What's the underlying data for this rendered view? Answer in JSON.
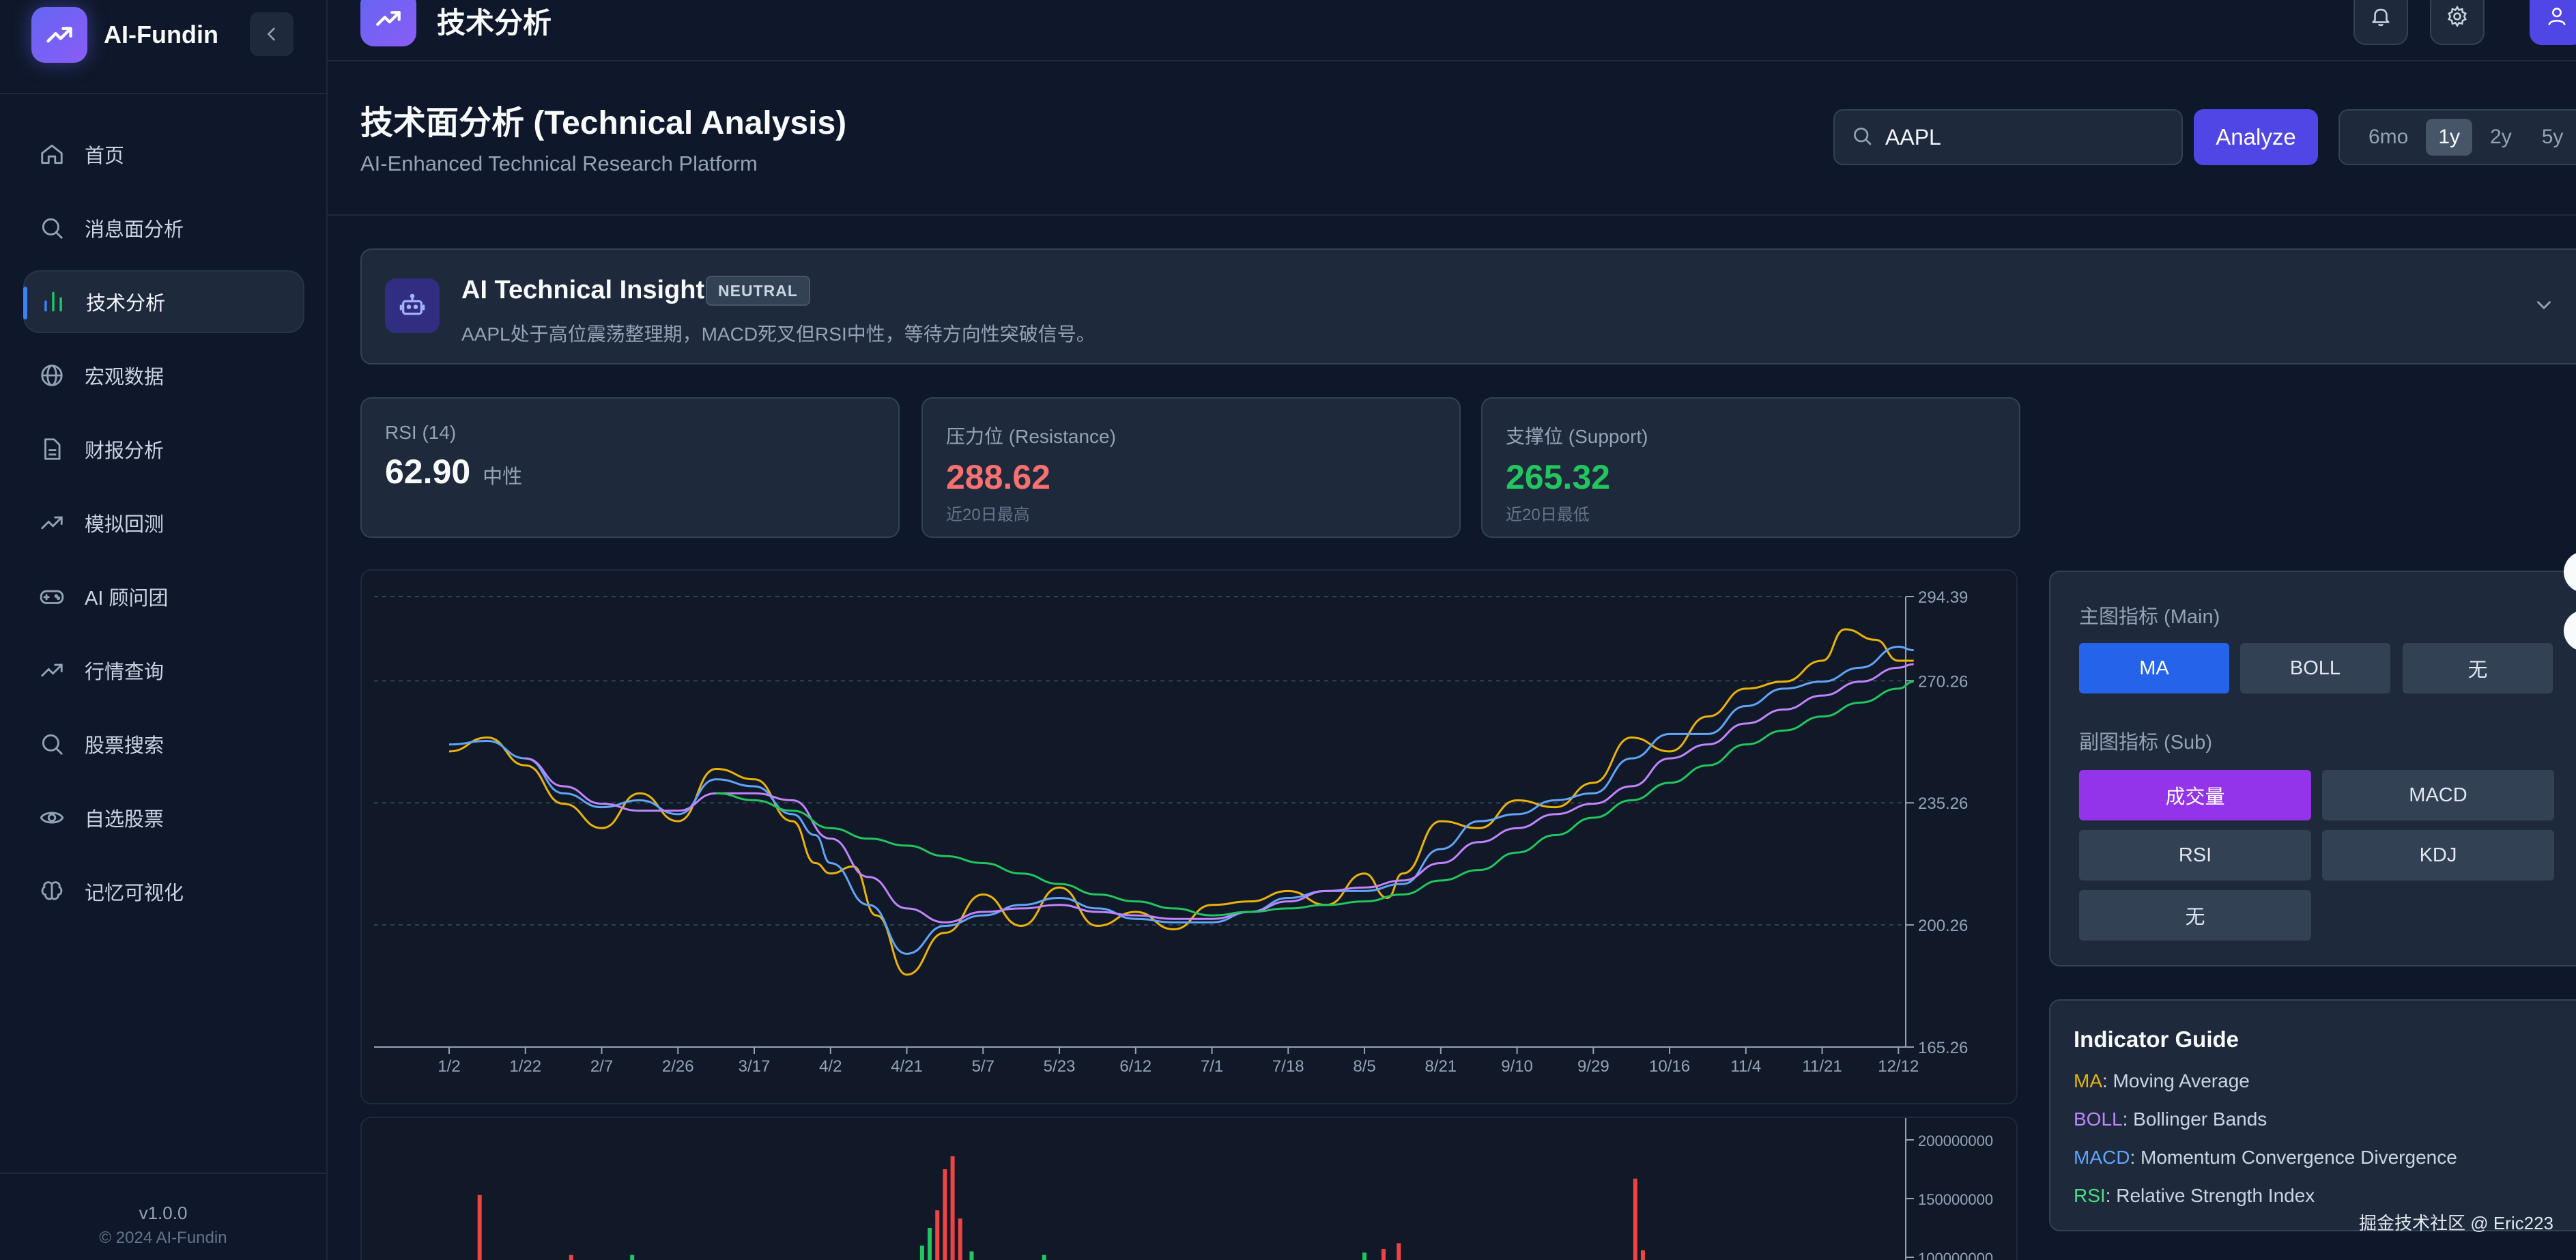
{
  "brand": {
    "name": "AI-Fundin"
  },
  "sidebar": {
    "items": [
      {
        "label": "首页",
        "icon": "home-icon"
      },
      {
        "label": "消息面分析",
        "icon": "search-icon"
      },
      {
        "label": "技术分析",
        "icon": "bar-chart-icon",
        "active": true
      },
      {
        "label": "宏观数据",
        "icon": "globe-icon"
      },
      {
        "label": "财报分析",
        "icon": "document-icon"
      },
      {
        "label": "模拟回测",
        "icon": "trending-up-icon"
      },
      {
        "label": "AI 顾问团",
        "icon": "gamepad-icon"
      },
      {
        "label": "行情查询",
        "icon": "trending-up-icon"
      },
      {
        "label": "股票搜索",
        "icon": "search-icon"
      },
      {
        "label": "自选股票",
        "icon": "eye-icon"
      },
      {
        "label": "记忆可视化",
        "icon": "brain-icon"
      }
    ],
    "version": "v1.0.0",
    "copyright": "© 2024 AI-Fundin"
  },
  "header": {
    "title": "技术分析"
  },
  "page": {
    "title": "技术面分析 (Technical Analysis)",
    "subtitle": "AI-Enhanced Technical Research Platform"
  },
  "search": {
    "value": "AAPL",
    "placeholder": ""
  },
  "analyze_label": "Analyze",
  "ranges": [
    {
      "label": "6mo",
      "active": false
    },
    {
      "label": "1y",
      "active": true
    },
    {
      "label": "2y",
      "active": false
    },
    {
      "label": "5y",
      "active": false
    }
  ],
  "insight": {
    "title": "AI Technical Insight",
    "badge": "NEUTRAL",
    "text": "AAPL处于高位震荡整理期，MACD死叉但RSI中性，等待方向性突破信号。"
  },
  "stats": {
    "rsi": {
      "label": "RSI (14)",
      "value": "62.90",
      "unit": "中性"
    },
    "resistance": {
      "label": "压力位 (Resistance)",
      "value": "288.62",
      "note": "近20日最高"
    },
    "support": {
      "label": "支撑位 (Support)",
      "value": "265.32",
      "note": "近20日最低"
    }
  },
  "indicators": {
    "main_label": "主图指标 (Main)",
    "main_options": [
      "MA",
      "BOLL",
      "无"
    ],
    "sub_label": "副图指标 (Sub)",
    "sub_options": [
      "成交量",
      "MACD",
      "RSI",
      "KDJ",
      "无"
    ]
  },
  "guide": {
    "title": "Indicator Guide",
    "rows": [
      {
        "key": "MA",
        "text": ": Moving Average",
        "color": "#eab308"
      },
      {
        "key": "BOLL",
        "text": ": Bollinger Bands",
        "color": "#c084fc"
      },
      {
        "key": "MACD",
        "text": ": Momentum Convergence Divergence",
        "color": "#60a5fa"
      },
      {
        "key": "RSI",
        "text": ": Relative Strength Index",
        "color": "#4ade80"
      }
    ]
  },
  "watermark": "掘金技术社区 @ Eric223",
  "colors": {
    "accent": "#4f46e5",
    "resistance": "#f87171",
    "support": "#22c55e",
    "ma_short": "#eab308",
    "ma_mid": "#60a5fa",
    "ma_long": "#c084fc",
    "ma_very_long": "#22c55e",
    "volume_up": "#ef4444",
    "volume_down": "#22c55e"
  },
  "chart_data": [
    {
      "type": "line",
      "xlabel": "",
      "ylabel": "",
      "x_ticks": [
        "1/2",
        "1/22",
        "2/7",
        "2/26",
        "3/17",
        "4/2",
        "4/21",
        "5/7",
        "5/23",
        "6/12",
        "7/1",
        "7/18",
        "8/5",
        "8/21",
        "9/10",
        "9/29",
        "10/16",
        "11/4",
        "11/21",
        "12/12"
      ],
      "y_ticks": [
        "294.39",
        "270.26",
        "235.26",
        "200.26",
        "165.26"
      ],
      "ylim": [
        165.26,
        294.39
      ],
      "x_count": 20,
      "series": [
        {
          "color": "#eab308",
          "x": [
            0,
            0.5,
            1,
            1.5,
            2,
            2.5,
            3,
            3.5,
            4,
            4.5,
            4.8,
            5,
            5.3,
            5.6,
            6,
            6.5,
            7,
            7.5,
            8,
            8.5,
            9,
            9.5,
            10,
            10.5,
            11,
            11.5,
            12,
            12.3,
            12.5,
            13,
            13.5,
            14,
            14.5,
            15,
            15.5,
            16,
            16.5,
            17,
            17.5,
            18,
            18.3,
            18.7,
            19,
            19.2
          ],
          "values": [
            250,
            254,
            246,
            235,
            228,
            238,
            230,
            245,
            242,
            230,
            218,
            215,
            217,
            203,
            186,
            198,
            209,
            200,
            211,
            200,
            204,
            199,
            206,
            207,
            210,
            206,
            215,
            208,
            215,
            230,
            228,
            236,
            234,
            241,
            254,
            250,
            260,
            268,
            270,
            276,
            285,
            282,
            276,
            276
          ]
        },
        {
          "color": "#60a5fa",
          "x": [
            0,
            0.5,
            1,
            1.5,
            2,
            2.5,
            3,
            3.5,
            4,
            4.5,
            4.8,
            5,
            5.5,
            6,
            6.5,
            7,
            7.5,
            8,
            8.5,
            9,
            9.5,
            10,
            10.5,
            11,
            11.5,
            12,
            12.5,
            13,
            13.5,
            14,
            14.5,
            15,
            15.5,
            16,
            16.5,
            17,
            17.5,
            18,
            18.5,
            19,
            19.2
          ],
          "values": [
            252,
            253,
            248,
            238,
            234,
            236,
            232,
            242,
            240,
            232,
            226,
            218,
            206,
            192,
            200,
            203,
            206,
            208,
            205,
            202,
            201,
            201,
            204,
            208,
            210,
            210,
            212,
            222,
            230,
            232,
            236,
            238,
            248,
            255,
            255,
            263,
            268,
            270,
            274,
            280,
            279
          ]
        },
        {
          "color": "#c084fc",
          "x": [
            1,
            1.5,
            2,
            2.5,
            3,
            3.5,
            4,
            4.5,
            5,
            5.5,
            6,
            6.5,
            7,
            7.5,
            8,
            8.5,
            9,
            9.5,
            10,
            10.5,
            11,
            11.5,
            12,
            12.5,
            13,
            13.5,
            14,
            14.5,
            15,
            15.5,
            16,
            16.5,
            17,
            17.5,
            18,
            18.5,
            19,
            19.2
          ],
          "values": [
            248,
            240,
            235,
            233,
            233,
            238,
            238,
            236,
            225,
            214,
            205,
            201,
            204,
            205,
            206,
            204,
            203,
            202,
            202,
            204,
            207,
            210,
            211,
            213,
            218,
            224,
            228,
            232,
            235,
            240,
            248,
            252,
            258,
            262,
            266,
            270,
            274,
            275
          ]
        },
        {
          "color": "#22c55e",
          "x": [
            3.5,
            4,
            4.5,
            5,
            5.5,
            6,
            6.5,
            7,
            7.5,
            8,
            8.5,
            9,
            9.5,
            10,
            10.5,
            11,
            11.5,
            12,
            12.5,
            13,
            13.5,
            14,
            14.5,
            15,
            15.5,
            16,
            16.5,
            17,
            17.5,
            18,
            18.5,
            19,
            19.2
          ],
          "values": [
            238,
            236,
            233,
            228,
            225,
            223,
            220,
            218,
            215,
            212,
            209,
            207,
            205,
            203,
            204,
            205,
            206,
            207,
            209,
            213,
            216,
            221,
            226,
            231,
            236,
            241,
            246,
            252,
            256,
            260,
            264,
            268,
            270
          ]
        }
      ]
    },
    {
      "type": "bar",
      "y_ticks": [
        "200000000",
        "150000000",
        "100000000"
      ],
      "ylim": [
        100000000,
        200000000
      ],
      "bars": [
        {
          "x": 0.4,
          "value": 153000000,
          "dir": "up"
        },
        {
          "x": 1.6,
          "value": 102000000,
          "dir": "up"
        },
        {
          "x": 2.4,
          "value": 102000000,
          "dir": "down"
        },
        {
          "x": 6.2,
          "value": 110000000,
          "dir": "down"
        },
        {
          "x": 6.3,
          "value": 125000000,
          "dir": "down"
        },
        {
          "x": 6.4,
          "value": 140000000,
          "dir": "up"
        },
        {
          "x": 6.5,
          "value": 175000000,
          "dir": "up"
        },
        {
          "x": 6.6,
          "value": 186000000,
          "dir": "up"
        },
        {
          "x": 6.7,
          "value": 133000000,
          "dir": "up"
        },
        {
          "x": 6.85,
          "value": 105000000,
          "dir": "down"
        },
        {
          "x": 7.8,
          "value": 102000000,
          "dir": "down"
        },
        {
          "x": 12.0,
          "value": 104000000,
          "dir": "down"
        },
        {
          "x": 12.25,
          "value": 107000000,
          "dir": "up"
        },
        {
          "x": 12.45,
          "value": 112000000,
          "dir": "up"
        },
        {
          "x": 15.55,
          "value": 167000000,
          "dir": "up"
        },
        {
          "x": 15.65,
          "value": 106000000,
          "dir": "up"
        }
      ]
    }
  ]
}
